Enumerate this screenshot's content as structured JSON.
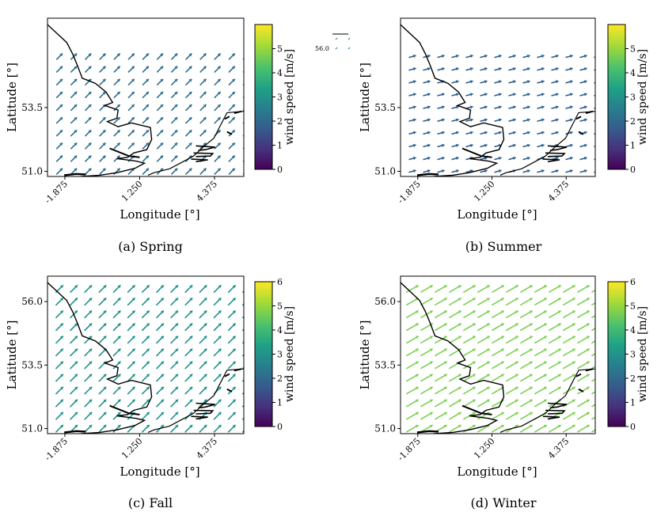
{
  "figure": {
    "panels": [
      {
        "caption": "(a) Spring",
        "xlabel": "Longitude [°]",
        "ylabel": "Latitude [°]",
        "xticks": [
          "-1.875",
          "1.250",
          "4.375"
        ],
        "yticks": [
          "53.5",
          "51.0"
        ],
        "colorbar": {
          "label": "wind speed [m/s]",
          "ticks": [
            "0",
            "1",
            "2",
            "3",
            "4",
            "5"
          ]
        }
      },
      {
        "caption": "(b) Summer",
        "xlabel": "Longitude [°]",
        "ylabel": "Latitude [°]",
        "xticks": [
          "-1.875",
          "1.250",
          "4.375"
        ],
        "yticks": [
          "53.5",
          "51.0"
        ],
        "colorbar": {
          "label": "wind speed [m/s]",
          "ticks": [
            "0",
            "1",
            "2",
            "3",
            "4",
            "5"
          ]
        }
      },
      {
        "caption": "(c) Fall",
        "xlabel": "Longitude [°]",
        "ylabel": "Latitude [°]",
        "xticks": [
          "-1.875",
          "1.250",
          "4.375"
        ],
        "yticks": [
          "56.0",
          "53.5",
          "51.0"
        ],
        "colorbar": {
          "label": "wind speed [m/s]",
          "ticks": [
            "0",
            "1",
            "2",
            "3",
            "4",
            "5",
            "6"
          ]
        }
      },
      {
        "caption": "(d) Winter",
        "xlabel": "Longitude [°]",
        "ylabel": "Latitude [°]",
        "xticks": [
          "-1.875",
          "1.250",
          "4.375"
        ],
        "yticks": [
          "56.0",
          "53.5",
          "51.0"
        ],
        "colorbar": {
          "label": "wind speed [m/s]",
          "ticks": [
            "0",
            "1",
            "2",
            "3",
            "4",
            "5",
            "6"
          ]
        }
      }
    ],
    "artifact_label": "56.0"
  },
  "chart_data": [
    {
      "type": "quiver",
      "season": "Spring",
      "xlabel": "Longitude [°]",
      "ylabel": "Latitude [°]",
      "xlim": [
        -2.6,
        5.6
      ],
      "ylim": [
        50.8,
        57.0
      ],
      "xticks": [
        -1.875,
        1.25,
        4.375
      ],
      "yticks": [
        51.0,
        53.5
      ],
      "colorbar": {
        "label": "wind speed [m/s]",
        "min": 0,
        "max": 6,
        "ticks": [
          0,
          1,
          2,
          3,
          4,
          5
        ],
        "colormap": "viridis"
      },
      "grid": {
        "lon_start": -2.1,
        "lon_step": 0.6,
        "n_lon": 14,
        "lat_start": 51.0,
        "lat_step": 0.5,
        "n_lat": 10
      },
      "mean_speed": 2.5,
      "direction_deg": 45,
      "arrow_color": "#2e6e8e"
    },
    {
      "type": "quiver",
      "season": "Summer",
      "xlabel": "Longitude [°]",
      "ylabel": "Latitude [°]",
      "xlim": [
        -2.6,
        5.6
      ],
      "ylim": [
        50.8,
        57.0
      ],
      "xticks": [
        -1.875,
        1.25,
        4.375
      ],
      "yticks": [
        51.0,
        53.5
      ],
      "colorbar": {
        "label": "wind speed [m/s]",
        "min": 0,
        "max": 6,
        "ticks": [
          0,
          1,
          2,
          3,
          4,
          5
        ],
        "colormap": "viridis"
      },
      "grid": {
        "lon_start": -2.1,
        "lon_step": 0.6,
        "n_lon": 14,
        "lat_start": 51.0,
        "lat_step": 0.5,
        "n_lat": 10
      },
      "mean_speed": 2.0,
      "direction_deg": 15,
      "arrow_color": "#2c5f8e"
    },
    {
      "type": "quiver",
      "season": "Fall",
      "xlabel": "Longitude [°]",
      "ylabel": "Latitude [°]",
      "xlim": [
        -2.6,
        5.6
      ],
      "ylim": [
        50.8,
        57.0
      ],
      "xticks": [
        -1.875,
        1.25,
        4.375
      ],
      "yticks": [
        51.0,
        53.5,
        56.0
      ],
      "colorbar": {
        "label": "wind speed [m/s]",
        "min": 0,
        "max": 6,
        "ticks": [
          0,
          1,
          2,
          3,
          4,
          5,
          6
        ],
        "colormap": "viridis"
      },
      "grid": {
        "lon_start": -2.1,
        "lon_step": 0.6,
        "n_lon": 14,
        "lat_start": 51.0,
        "lat_step": 0.5,
        "n_lat": 12
      },
      "mean_speed": 3.2,
      "direction_deg": 45,
      "arrow_color": "#21918c"
    },
    {
      "type": "quiver",
      "season": "Winter",
      "xlabel": "Longitude [°]",
      "ylabel": "Latitude [°]",
      "xlim": [
        -2.6,
        5.6
      ],
      "ylim": [
        50.8,
        57.0
      ],
      "xticks": [
        -1.875,
        1.25,
        4.375
      ],
      "yticks": [
        51.0,
        53.5,
        56.0
      ],
      "colorbar": {
        "label": "wind speed [m/s]",
        "min": 0,
        "max": 6,
        "ticks": [
          0,
          1,
          2,
          3,
          4,
          5,
          6
        ],
        "colormap": "viridis"
      },
      "grid": {
        "lon_start": -2.1,
        "lon_step": 0.6,
        "n_lon": 14,
        "lat_start": 51.0,
        "lat_step": 0.5,
        "n_lat": 12
      },
      "mean_speed": 4.6,
      "direction_deg": 30,
      "arrow_color": "#7ad151"
    }
  ]
}
